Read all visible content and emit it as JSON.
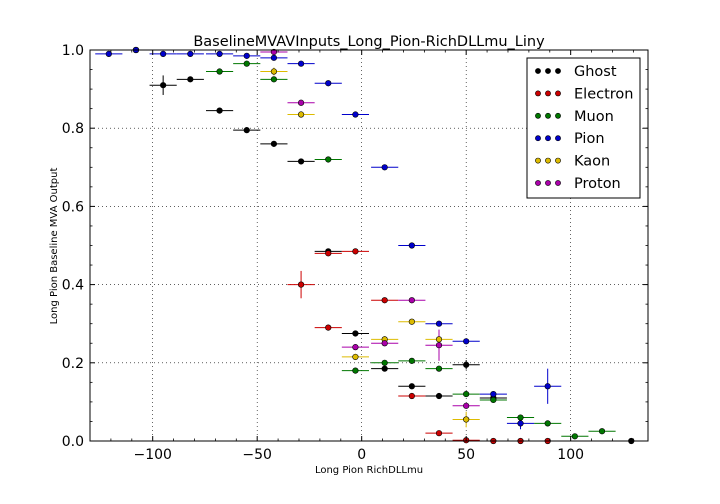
{
  "chart_data": {
    "type": "scatter",
    "title": "BaselineMVAVInputs_Long_Pion-RichDLLmu_Liny",
    "xlabel": "Long Pion RichDLLmu",
    "ylabel": "Long Pion Baseline MVA Output",
    "xlim": [
      -130,
      137
    ],
    "ylim": [
      0,
      1
    ],
    "x_ticks": [
      -100,
      -50,
      0,
      50,
      100
    ],
    "x_tick_labels": [
      "−100",
      "−50",
      "0",
      "50",
      "100"
    ],
    "y_ticks": [
      0,
      0.2,
      0.4,
      0.6,
      0.8,
      1.0
    ],
    "y_tick_labels": [
      "0.0",
      "0.2",
      "0.4",
      "0.6",
      "0.8",
      "1.0"
    ],
    "grid": true,
    "legend_position": "top-right",
    "series": [
      {
        "name": "Ghost",
        "color": "#000000",
        "points": [
          {
            "x": -108,
            "y": 1.0,
            "xerr": 6.5,
            "yerr": 0
          },
          {
            "x": -95,
            "y": 0.91,
            "xerr": 6.5,
            "yerr": 0.025
          },
          {
            "x": -82,
            "y": 0.925,
            "xerr": 6.5,
            "yerr": 0.005
          },
          {
            "x": -68,
            "y": 0.845,
            "xerr": 6.5,
            "yerr": 0.005
          },
          {
            "x": -55,
            "y": 0.795,
            "xerr": 6.5,
            "yerr": 0.004
          },
          {
            "x": -42,
            "y": 0.76,
            "xerr": 6.5,
            "yerr": 0.004
          },
          {
            "x": -29,
            "y": 0.715,
            "xerr": 6.5,
            "yerr": 0.004
          },
          {
            "x": -16,
            "y": 0.485,
            "xerr": 6.5,
            "yerr": 0.005
          },
          {
            "x": -3,
            "y": 0.275,
            "xerr": 6.5,
            "yerr": 0.004
          },
          {
            "x": 11,
            "y": 0.185,
            "xerr": 6.5,
            "yerr": 0.004
          },
          {
            "x": 24,
            "y": 0.14,
            "xerr": 6.5,
            "yerr": 0.004
          },
          {
            "x": 37,
            "y": 0.115,
            "xerr": 6.5,
            "yerr": 0.004
          },
          {
            "x": 50,
            "y": 0.195,
            "xerr": 6.5,
            "yerr": 0.012
          },
          {
            "x": 63,
            "y": 0.11,
            "xerr": 6.5,
            "yerr": 0.008
          },
          {
            "x": 129,
            "y": 0.0,
            "xerr": 6.5,
            "yerr": 0
          }
        ]
      },
      {
        "name": "Electron",
        "color": "#cc0000",
        "points": [
          {
            "x": -29,
            "y": 0.4,
            "xerr": 6.5,
            "yerr": 0.035
          },
          {
            "x": -16,
            "y": 0.29,
            "xerr": 6.5,
            "yerr": 0.005
          },
          {
            "x": -16,
            "y": 0.48,
            "xerr": 6.5,
            "yerr": 0.005
          },
          {
            "x": -3,
            "y": 0.485,
            "xerr": 6.5,
            "yerr": 0.005
          },
          {
            "x": 11,
            "y": 0.36,
            "xerr": 6.5,
            "yerr": 0.005
          },
          {
            "x": 24,
            "y": 0.115,
            "xerr": 6.5,
            "yerr": 0.004
          },
          {
            "x": 37,
            "y": 0.02,
            "xerr": 6.5,
            "yerr": 0.003
          },
          {
            "x": 50,
            "y": 0.002,
            "xerr": 6.5,
            "yerr": 0
          },
          {
            "x": 63,
            "y": 0.0,
            "xerr": 6.5,
            "yerr": 0
          },
          {
            "x": 76,
            "y": 0.0,
            "xerr": 6.5,
            "yerr": 0
          },
          {
            "x": 89,
            "y": 0.0,
            "xerr": 6.5,
            "yerr": 0
          }
        ]
      },
      {
        "name": "Muon",
        "color": "#007700",
        "points": [
          {
            "x": -108,
            "y": 1.0,
            "xerr": 6.5,
            "yerr": 0
          },
          {
            "x": -68,
            "y": 0.945,
            "xerr": 6.5,
            "yerr": 0.004
          },
          {
            "x": -55,
            "y": 0.965,
            "xerr": 6.5,
            "yerr": 0.003
          },
          {
            "x": -42,
            "y": 0.925,
            "xerr": 6.5,
            "yerr": 0.004
          },
          {
            "x": -16,
            "y": 0.72,
            "xerr": 6.5,
            "yerr": 0.004
          },
          {
            "x": -3,
            "y": 0.18,
            "xerr": 6.5,
            "yerr": 0.004
          },
          {
            "x": 11,
            "y": 0.2,
            "xerr": 6.5,
            "yerr": 0.004
          },
          {
            "x": 24,
            "y": 0.205,
            "xerr": 6.5,
            "yerr": 0.004
          },
          {
            "x": 37,
            "y": 0.185,
            "xerr": 6.5,
            "yerr": 0.004
          },
          {
            "x": 50,
            "y": 0.12,
            "xerr": 6.5,
            "yerr": 0.004
          },
          {
            "x": 63,
            "y": 0.105,
            "xerr": 6.5,
            "yerr": 0.006
          },
          {
            "x": 76,
            "y": 0.06,
            "xerr": 6.5,
            "yerr": 0.005
          },
          {
            "x": 89,
            "y": 0.045,
            "xerr": 6.5,
            "yerr": 0.005
          },
          {
            "x": 102,
            "y": 0.012,
            "xerr": 6.5,
            "yerr": 0.004
          },
          {
            "x": 115,
            "y": 0.025,
            "xerr": 6.5,
            "yerr": 0.006
          }
        ]
      },
      {
        "name": "Pion",
        "color": "#0000cc",
        "points": [
          {
            "x": -121,
            "y": 0.99,
            "xerr": 6.5,
            "yerr": 0
          },
          {
            "x": -108,
            "y": 1.0,
            "xerr": 6.5,
            "yerr": 0
          },
          {
            "x": -95,
            "y": 0.99,
            "xerr": 6.5,
            "yerr": 0
          },
          {
            "x": -82,
            "y": 0.99,
            "xerr": 6.5,
            "yerr": 0
          },
          {
            "x": -68,
            "y": 0.99,
            "xerr": 6.5,
            "yerr": 0
          },
          {
            "x": -55,
            "y": 0.985,
            "xerr": 6.5,
            "yerr": 0
          },
          {
            "x": -42,
            "y": 0.98,
            "xerr": 6.5,
            "yerr": 0
          },
          {
            "x": -29,
            "y": 0.965,
            "xerr": 6.5,
            "yerr": 0.003
          },
          {
            "x": -16,
            "y": 0.915,
            "xerr": 6.5,
            "yerr": 0.003
          },
          {
            "x": -3,
            "y": 0.835,
            "xerr": 6.5,
            "yerr": 0.003
          },
          {
            "x": 11,
            "y": 0.7,
            "xerr": 6.5,
            "yerr": 0.004
          },
          {
            "x": 24,
            "y": 0.5,
            "xerr": 6.5,
            "yerr": 0.004
          },
          {
            "x": 37,
            "y": 0.3,
            "xerr": 6.5,
            "yerr": 0.004
          },
          {
            "x": 50,
            "y": 0.255,
            "xerr": 6.5,
            "yerr": 0.004
          },
          {
            "x": 63,
            "y": 0.12,
            "xerr": 6.5,
            "yerr": 0.005
          },
          {
            "x": 76,
            "y": 0.045,
            "xerr": 6.5,
            "yerr": 0.015
          },
          {
            "x": 89,
            "y": 0.14,
            "xerr": 6.5,
            "yerr": 0.045
          }
        ]
      },
      {
        "name": "Kaon",
        "color": "#ddbb00",
        "points": [
          {
            "x": -42,
            "y": 0.945,
            "xerr": 6.5,
            "yerr": 0.01
          },
          {
            "x": -29,
            "y": 0.835,
            "xerr": 6.5,
            "yerr": 0.005
          },
          {
            "x": -3,
            "y": 0.215,
            "xerr": 6.5,
            "yerr": 0.008
          },
          {
            "x": 11,
            "y": 0.26,
            "xerr": 6.5,
            "yerr": 0.008
          },
          {
            "x": 24,
            "y": 0.305,
            "xerr": 6.5,
            "yerr": 0.006
          },
          {
            "x": 37,
            "y": 0.26,
            "xerr": 6.5,
            "yerr": 0.015
          },
          {
            "x": 50,
            "y": 0.055,
            "xerr": 6.5,
            "yerr": 0.02
          }
        ]
      },
      {
        "name": "Proton",
        "color": "#aa00aa",
        "points": [
          {
            "x": -42,
            "y": 0.995,
            "xerr": 6.5,
            "yerr": 0.005
          },
          {
            "x": -29,
            "y": 0.865,
            "xerr": 6.5,
            "yerr": 0.005
          },
          {
            "x": -3,
            "y": 0.24,
            "xerr": 6.5,
            "yerr": 0.007
          },
          {
            "x": 11,
            "y": 0.25,
            "xerr": 6.5,
            "yerr": 0.007
          },
          {
            "x": 24,
            "y": 0.36,
            "xerr": 6.5,
            "yerr": 0.006
          },
          {
            "x": 37,
            "y": 0.245,
            "xerr": 6.5,
            "yerr": 0.04
          },
          {
            "x": 50,
            "y": 0.09,
            "xerr": 6.5,
            "yerr": 0.006
          }
        ]
      }
    ]
  }
}
